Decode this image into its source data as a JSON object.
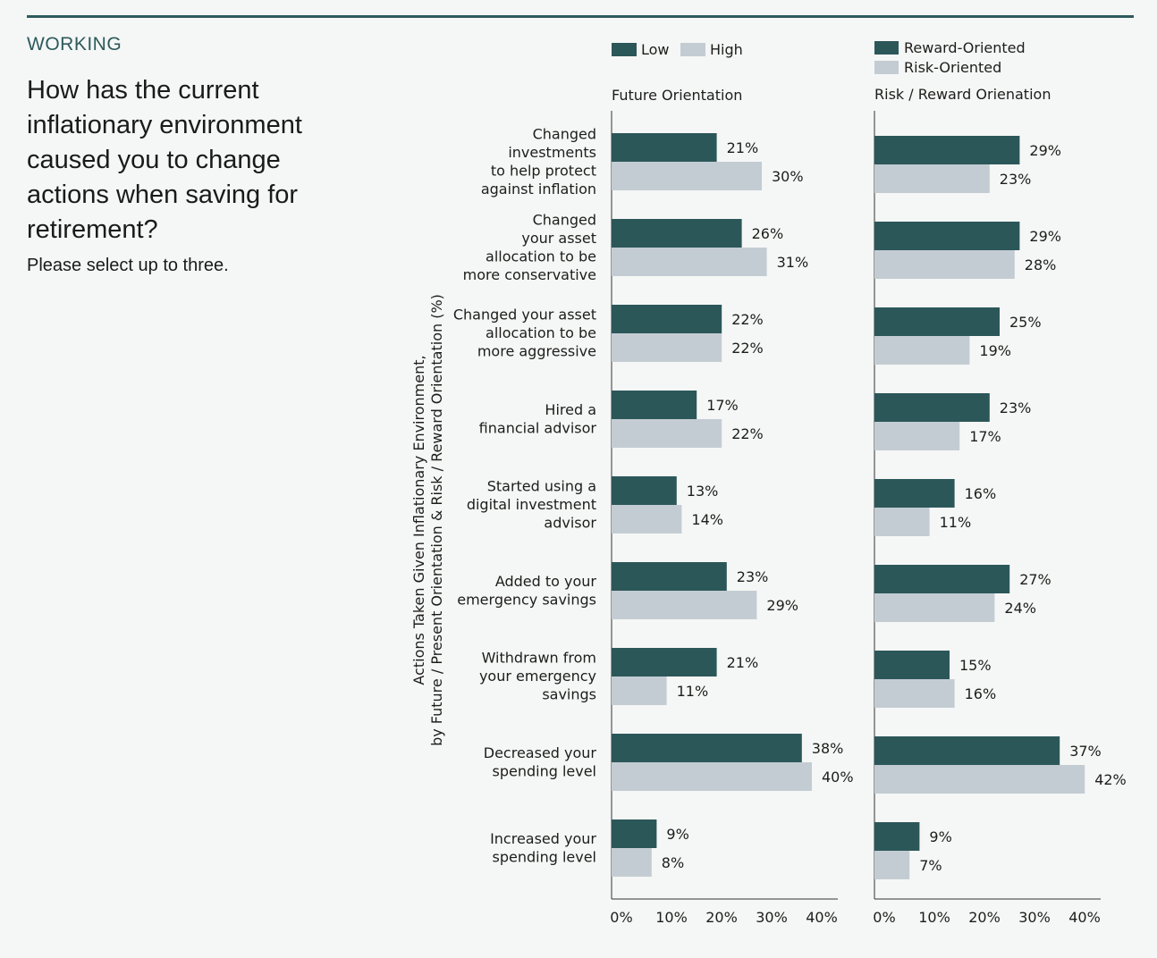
{
  "header": {
    "section": "WORKING",
    "question": "How has the current inflationary environment caused you to change actions when saving for retirement?",
    "instruction": "Please select up to three."
  },
  "colors": {
    "dark": "#2c5759",
    "light": "#c4ccd3",
    "rule": "#2e5a5c"
  },
  "chart_data": {
    "type": "bar",
    "orientation": "horizontal",
    "ylabel": "Actions Taken Given Inflationary Environment, by Future / Present Orientation  & Risk / Reward Orientation (%)",
    "categories": [
      "Changed investments to help protect against inflation",
      "Changed your asset allocation to be more conservative",
      "Changed your asset allocation to be more aggressive",
      "Hired a financial advisor",
      "Started using a digital investment advisor",
      "Added to your emergency savings",
      "Withdrawn from your emergency savings",
      "Decreased your spending level",
      "Increased your spending level"
    ],
    "category_lines": [
      [
        "Changed",
        "investments",
        "to help protect",
        "against inflation"
      ],
      [
        "Changed",
        "your asset",
        "allocation to be",
        "more conservative"
      ],
      [
        "Changed your asset",
        "allocation to be",
        "more aggressive"
      ],
      [
        "Hired a",
        "financial advisor"
      ],
      [
        "Started using a",
        "digital investment",
        "advisor"
      ],
      [
        "Added to your",
        "emergency savings"
      ],
      [
        "Withdrawn from",
        "your emergency",
        "savings"
      ],
      [
        "Decreased your",
        "spending level"
      ],
      [
        "Increased your",
        "spending level"
      ]
    ],
    "panels": [
      {
        "title": "Future Orientation",
        "legend": [
          "Low",
          "High"
        ],
        "series": [
          {
            "name": "Low",
            "color": "#2c5759",
            "values": [
              21,
              26,
              22,
              17,
              13,
              23,
              21,
              38,
              9
            ]
          },
          {
            "name": "High",
            "color": "#c4ccd3",
            "values": [
              30,
              31,
              22,
              22,
              14,
              29,
              11,
              40,
              8
            ]
          }
        ],
        "xlim": [
          0,
          40
        ],
        "xticks": [
          "0%",
          "10%",
          "20%",
          "30%",
          "40%"
        ]
      },
      {
        "title": "Risk / Reward Orienation",
        "legend": [
          "Reward-Oriented",
          "Risk-Oriented"
        ],
        "series": [
          {
            "name": "Reward-Oriented",
            "color": "#2c5759",
            "values": [
              29,
              29,
              25,
              23,
              16,
              27,
              15,
              37,
              9
            ]
          },
          {
            "name": "Risk-Oriented",
            "color": "#c4ccd3",
            "values": [
              23,
              28,
              19,
              17,
              11,
              24,
              16,
              42,
              7
            ]
          }
        ],
        "xlim": [
          0,
          40
        ],
        "xticks": [
          "0%",
          "10%",
          "20%",
          "30%",
          "40%"
        ]
      }
    ]
  }
}
